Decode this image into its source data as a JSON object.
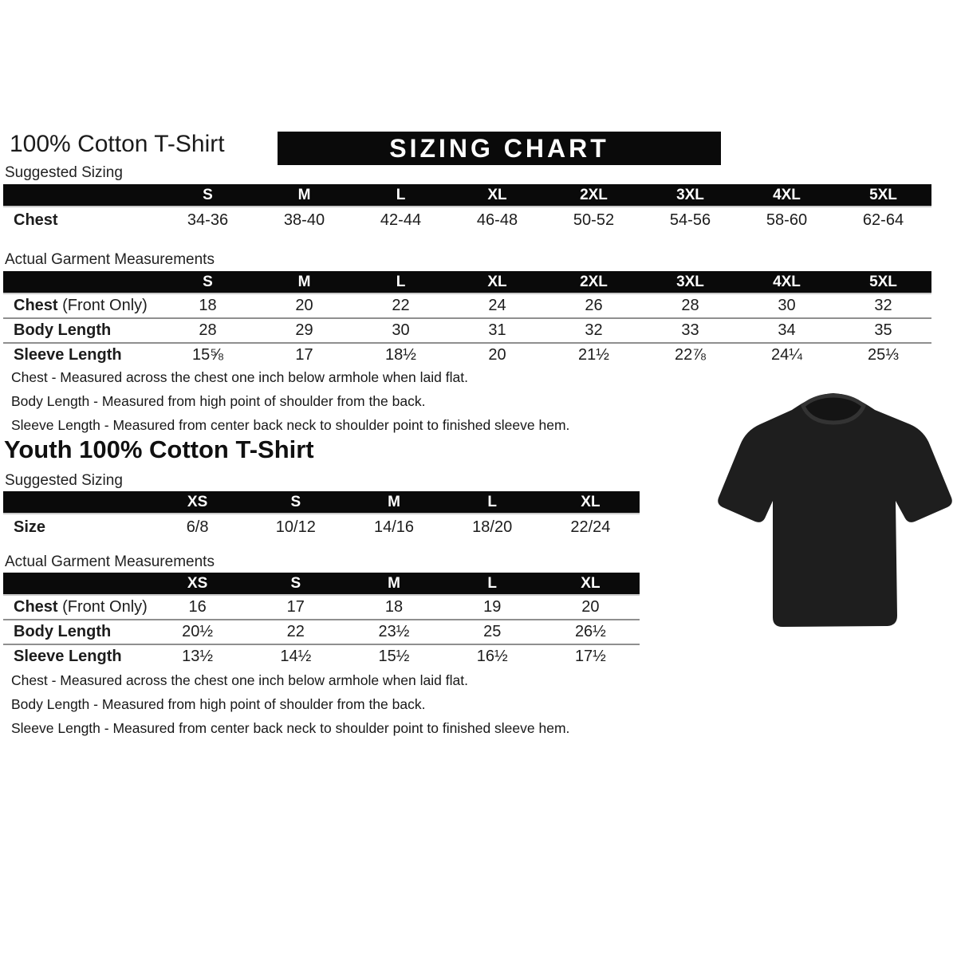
{
  "header": {
    "title": "100% Cotton T-Shirt",
    "banner": "SIZING CHART"
  },
  "colors": {
    "bar": "#0a0a0a",
    "shirt": "#1e1e1e",
    "collar": "#141414",
    "collar_rib": "#333333"
  },
  "adult": {
    "suggested": {
      "label": "Suggested Sizing",
      "columns": [
        "S",
        "M",
        "L",
        "XL",
        "2XL",
        "3XL",
        "4XL",
        "5XL"
      ],
      "rows": [
        {
          "label": "Chest",
          "suffix": "",
          "values": [
            "34-36",
            "38-40",
            "42-44",
            "46-48",
            "50-52",
            "54-56",
            "58-60",
            "62-64"
          ]
        }
      ]
    },
    "measurements": {
      "label": "Actual Garment Measurements",
      "columns": [
        "S",
        "M",
        "L",
        "XL",
        "2XL",
        "3XL",
        "4XL",
        "5XL"
      ],
      "rows": [
        {
          "label": "Chest",
          "suffix": " (Front Only)",
          "values": [
            "18",
            "20",
            "22",
            "24",
            "26",
            "28",
            "30",
            "32"
          ]
        },
        {
          "label": "Body Length",
          "suffix": "",
          "values": [
            "28",
            "29",
            "30",
            "31",
            "32",
            "33",
            "34",
            "35"
          ]
        },
        {
          "label": "Sleeve Length",
          "suffix": "",
          "values": [
            "15⅝",
            "17",
            "18½",
            "20",
            "21½",
            "22⅞",
            "24¼",
            "25⅓"
          ]
        }
      ]
    },
    "notes": [
      "Chest - Measured across the chest one inch below armhole when laid flat.",
      "Body Length - Measured from high point of shoulder from the back.",
      "Sleeve Length - Measured from center back neck to shoulder point to finished sleeve hem."
    ]
  },
  "youth": {
    "title": "Youth 100% Cotton T-Shirt",
    "suggested": {
      "label": "Suggested Sizing",
      "columns": [
        "XS",
        "S",
        "M",
        "L",
        "XL"
      ],
      "rows": [
        {
          "label": "Size",
          "suffix": "",
          "values": [
            "6/8",
            "10/12",
            "14/16",
            "18/20",
            "22/24"
          ]
        }
      ]
    },
    "measurements": {
      "label": "Actual Garment Measurements",
      "columns": [
        "XS",
        "S",
        "M",
        "L",
        "XL"
      ],
      "rows": [
        {
          "label": "Chest",
          "suffix": " (Front Only)",
          "values": [
            "16",
            "17",
            "18",
            "19",
            "20"
          ]
        },
        {
          "label": "Body Length",
          "suffix": "",
          "values": [
            "20½",
            "22",
            "23½",
            "25",
            "26½"
          ]
        },
        {
          "label": "Sleeve Length",
          "suffix": "",
          "values": [
            "13½",
            "14½",
            "15½",
            "16½",
            "17½"
          ]
        }
      ]
    },
    "notes": [
      "Chest - Measured across the chest one inch below armhole when laid flat.",
      "Body Length - Measured from high point of shoulder from the back.",
      "Sleeve Length - Measured from center back neck to shoulder point to finished sleeve hem."
    ]
  }
}
